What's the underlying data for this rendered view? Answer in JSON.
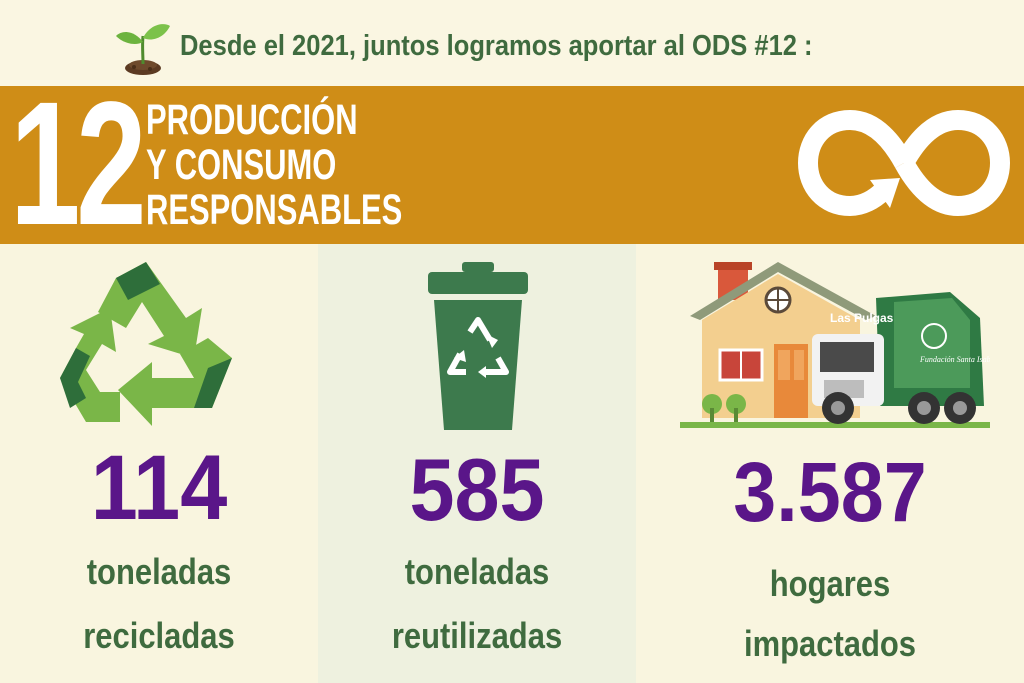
{
  "header": {
    "text": "Desde el 2021, juntos logramos aportar al ODS #12 :",
    "icon": "sprout-icon"
  },
  "goal": {
    "number": "12",
    "title_lines": [
      "PRODUCCIÓN",
      "Y CONSUMO",
      "RESPONSABLES"
    ],
    "icon": "infinity-arrow-icon"
  },
  "colors": {
    "band": "#cf8d17",
    "number": "#5a1689",
    "label": "#3f6b3f",
    "background": "#faf6e2",
    "recycle_light": "#7ab648",
    "recycle_dark": "#2e6e3a",
    "bin": "#3d7a4d"
  },
  "stats": [
    {
      "value": "114",
      "label_lines": [
        "toneladas",
        "recicladas"
      ],
      "icon": "recycle-icon"
    },
    {
      "value": "585",
      "label_lines": [
        "toneladas",
        "reutilizadas"
      ],
      "icon": "recycling-bin-icon"
    },
    {
      "value": "3.587",
      "label_lines": [
        "hogares",
        "impactados"
      ],
      "icon": "house-and-garbage-truck-icon"
    }
  ],
  "truck": {
    "brand_text": "Las Pulgas",
    "logo_text": "Fundación Santa Isabel"
  }
}
